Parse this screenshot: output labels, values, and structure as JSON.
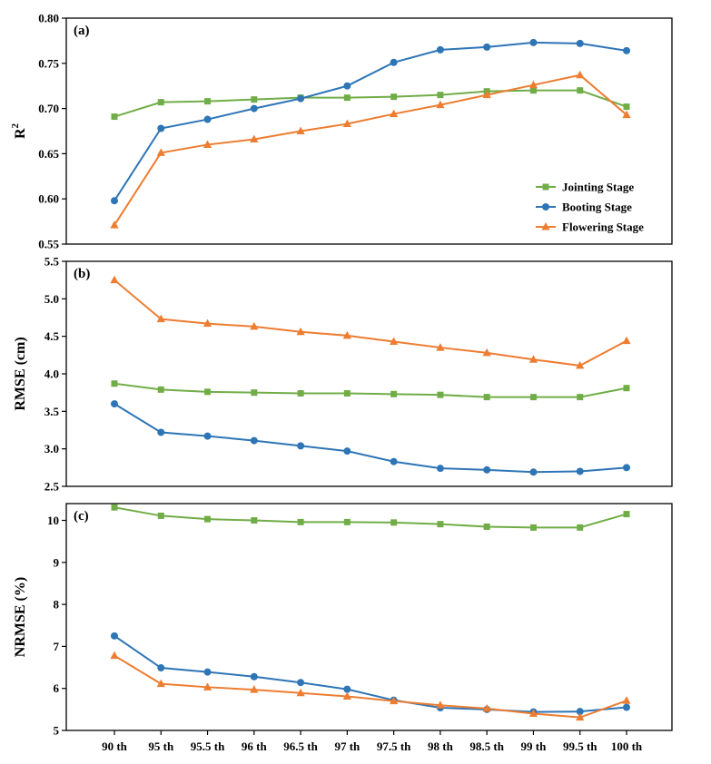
{
  "chart_data": {
    "type": "line",
    "categories": [
      "90 th",
      "95 th",
      "95.5 th",
      "96 th",
      "96.5 th",
      "97 th",
      "97.5 th",
      "98 th",
      "98.5 th",
      "99 th",
      "99.5 th",
      "100 th"
    ],
    "colors": {
      "Jointing Stage": "#70ad47",
      "Booting Stage": "#2e75b6",
      "Flowering Stage": "#ed7d31"
    },
    "legend": {
      "position": "lower-right",
      "entries": [
        "Jointing Stage",
        "Booting Stage",
        "Flowering Stage"
      ],
      "markers": [
        "square",
        "circle",
        "triangle"
      ]
    },
    "panels": [
      {
        "label": "(a)",
        "ylabel": "R",
        "ylabel_superscript": "2",
        "ylim": [
          0.55,
          0.8
        ],
        "yticks": [
          "0.55",
          "0.60",
          "0.65",
          "0.70",
          "0.75",
          "0.80"
        ],
        "series": [
          {
            "name": "Jointing Stage",
            "values": [
              0.691,
              0.707,
              0.708,
              0.71,
              0.712,
              0.712,
              0.713,
              0.715,
              0.719,
              0.72,
              0.72,
              0.702
            ]
          },
          {
            "name": "Booting Stage",
            "values": [
              0.598,
              0.678,
              0.688,
              0.7,
              0.711,
              0.725,
              0.751,
              0.765,
              0.768,
              0.773,
              0.772,
              0.764
            ]
          },
          {
            "name": "Flowering Stage",
            "values": [
              0.571,
              0.651,
              0.66,
              0.666,
              0.675,
              0.683,
              0.694,
              0.704,
              0.715,
              0.726,
              0.737,
              0.693
            ]
          }
        ]
      },
      {
        "label": "(b)",
        "ylabel": "RMSE (cm)",
        "ylim": [
          2.5,
          5.5
        ],
        "yticks": [
          "2.5",
          "3.0",
          "3.5",
          "4.0",
          "4.5",
          "5.0",
          "5.5"
        ],
        "series": [
          {
            "name": "Jointing Stage",
            "values": [
              3.87,
              3.79,
              3.76,
              3.75,
              3.74,
              3.74,
              3.73,
              3.72,
              3.69,
              3.69,
              3.69,
              3.81
            ]
          },
          {
            "name": "Booting Stage",
            "values": [
              3.6,
              3.22,
              3.17,
              3.11,
              3.04,
              2.97,
              2.83,
              2.74,
              2.72,
              2.69,
              2.7,
              2.75
            ]
          },
          {
            "name": "Flowering Stage",
            "values": [
              5.25,
              4.73,
              4.67,
              4.63,
              4.56,
              4.51,
              4.43,
              4.35,
              4.28,
              4.19,
              4.11,
              4.44
            ]
          }
        ]
      },
      {
        "label": "(c)",
        "ylabel": "NRMSE (%)",
        "ylim": [
          5,
          10.4
        ],
        "yticks": [
          "5",
          "6",
          "7",
          "8",
          "9",
          "10"
        ],
        "series": [
          {
            "name": "Jointing Stage",
            "values": [
              10.31,
              10.11,
              10.03,
              10.0,
              9.96,
              9.96,
              9.95,
              9.91,
              9.85,
              9.83,
              9.83,
              10.15
            ]
          },
          {
            "name": "Booting Stage",
            "values": [
              7.25,
              6.49,
              6.39,
              6.28,
              6.14,
              5.98,
              5.72,
              5.54,
              5.5,
              5.44,
              5.45,
              5.55
            ]
          },
          {
            "name": "Flowering Stage",
            "values": [
              6.78,
              6.11,
              6.03,
              5.97,
              5.89,
              5.81,
              5.7,
              5.6,
              5.52,
              5.4,
              5.31,
              5.71
            ]
          }
        ]
      }
    ]
  }
}
